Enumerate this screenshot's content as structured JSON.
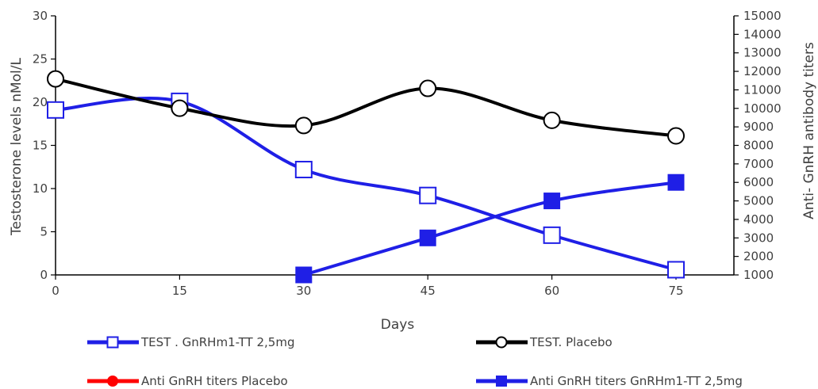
{
  "chart_data": {
    "type": "line",
    "xlabel": "Days",
    "ylabel_left": "Testosterone levels nMol/L",
    "ylabel_right": "Anti- GnRH antibody titers",
    "x_ticks": [
      0,
      15,
      30,
      45,
      60,
      75
    ],
    "y_left_ticks": [
      0,
      5,
      10,
      15,
      20,
      25,
      30
    ],
    "y_right_ticks": [
      1000,
      2000,
      3000,
      4000,
      5000,
      6000,
      7000,
      8000,
      9000,
      10000,
      11000,
      12000,
      13000,
      14000,
      15000
    ],
    "xlim": [
      0,
      82
    ],
    "ylim_left": [
      0,
      30
    ],
    "ylim_right": [
      1000,
      15000
    ],
    "grid": false,
    "series": [
      {
        "name": "TEST . GnRHm1-TT 2,5mg",
        "axis": "left",
        "color": "#1f1fe6",
        "marker": "open-square",
        "x": [
          0,
          15,
          30,
          45,
          60,
          75
        ],
        "y": [
          19.1,
          20.1,
          12.2,
          9.2,
          4.6,
          0.6
        ]
      },
      {
        "name": "TEST. Placebo",
        "axis": "left",
        "color": "#000000",
        "marker": "open-circle",
        "x": [
          0,
          15,
          30,
          45,
          60,
          75
        ],
        "y": [
          22.7,
          19.3,
          17.3,
          21.6,
          17.9,
          16.1
        ]
      },
      {
        "name": "Anti GnRH titers Placebo",
        "axis": "right",
        "color": "#ff0000",
        "marker": "filled-circle",
        "x": [],
        "y": []
      },
      {
        "name": "Anti GnRH titers GnRHm1-TT 2,5mg",
        "axis": "right",
        "color": "#1f1fe6",
        "marker": "filled-square",
        "x": [
          30,
          45,
          60,
          75
        ],
        "y": [
          1000,
          3000,
          5000,
          6000
        ]
      }
    ]
  }
}
